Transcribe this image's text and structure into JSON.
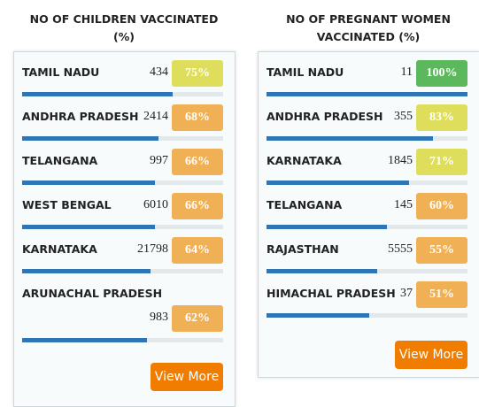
{
  "panels": [
    {
      "title": "NO OF CHILDREN VACCINATED (%)",
      "button": "View More",
      "rows": [
        {
          "name": "TAMIL NADU",
          "count": 434,
          "percent": 75,
          "percent_label": "75%",
          "color": "#dede5c"
        },
        {
          "name": "ANDHRA PRADESH",
          "count": 2414,
          "percent": 68,
          "percent_label": "68%",
          "color": "#f0b055"
        },
        {
          "name": "TELANGANA",
          "count": 997,
          "percent": 66,
          "percent_label": "66%",
          "color": "#f0b055"
        },
        {
          "name": "WEST BENGAL",
          "count": 6010,
          "percent": 66,
          "percent_label": "66%",
          "color": "#f0b055"
        },
        {
          "name": "KARNATAKA",
          "count": 21798,
          "percent": 64,
          "percent_label": "64%",
          "color": "#f0b055"
        },
        {
          "name": "ARUNACHAL PRADESH",
          "count": 983,
          "percent": 62,
          "percent_label": "62%",
          "color": "#f0b055"
        }
      ]
    },
    {
      "title": "NO OF PREGNANT WOMEN VACCINATED (%)",
      "button": "View More",
      "rows": [
        {
          "name": "TAMIL NADU",
          "count": 11,
          "percent": 100,
          "percent_label": "100%",
          "color": "#5cb85c"
        },
        {
          "name": "ANDHRA PRADESH",
          "count": 355,
          "percent": 83,
          "percent_label": "83%",
          "color": "#dede5c"
        },
        {
          "name": "KARNATAKA",
          "count": 1845,
          "percent": 71,
          "percent_label": "71%",
          "color": "#dede5c"
        },
        {
          "name": "TELANGANA",
          "count": 145,
          "percent": 60,
          "percent_label": "60%",
          "color": "#f0b055"
        },
        {
          "name": "RAJASTHAN",
          "count": 5555,
          "percent": 55,
          "percent_label": "55%",
          "color": "#f0b055"
        },
        {
          "name": "HIMACHAL PRADESH",
          "count": 37,
          "percent": 51,
          "percent_label": "51%",
          "color": "#f0b055"
        }
      ]
    }
  ]
}
